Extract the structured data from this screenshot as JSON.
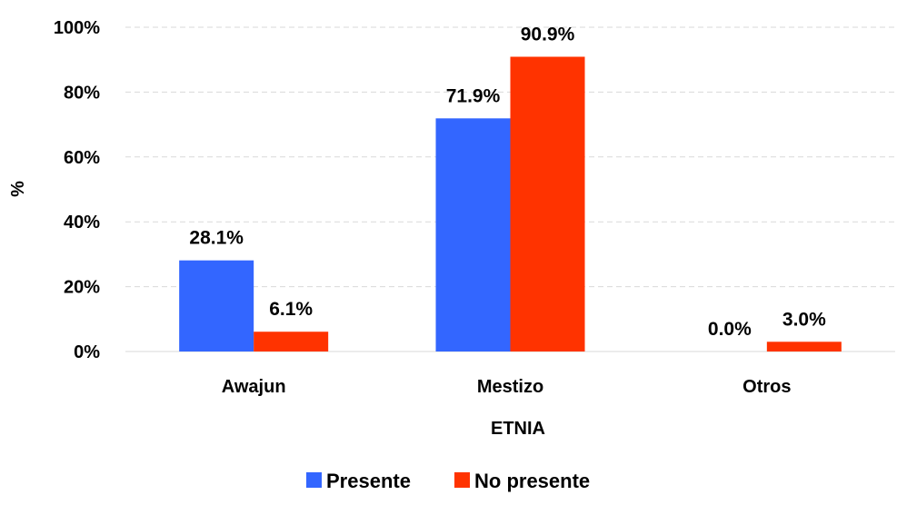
{
  "chart_data": {
    "type": "bar",
    "categories": [
      "Awajun",
      "Mestizo",
      "Otros"
    ],
    "series": [
      {
        "name": "Presente",
        "values": [
          28.1,
          71.9,
          0.0
        ],
        "labels": [
          "28.1%",
          "71.9%",
          "0.0%"
        ]
      },
      {
        "name": "No presente",
        "values": [
          6.1,
          90.9,
          3.0
        ],
        "labels": [
          "6.1%",
          "90.9%",
          "3.0%"
        ]
      }
    ],
    "xlabel": "ETNIA",
    "ylabel": "%",
    "ylim": [
      0,
      100
    ],
    "yticks": [
      0,
      20,
      40,
      60,
      80,
      100
    ],
    "ytick_labels": [
      "0%",
      "20%",
      "40%",
      "60%",
      "80%",
      "100%"
    ],
    "grid": true,
    "legend_position": "bottom",
    "colors": {
      "series": [
        "#3366FF",
        "#FF3300"
      ],
      "grid": "#D9D9D9"
    }
  }
}
